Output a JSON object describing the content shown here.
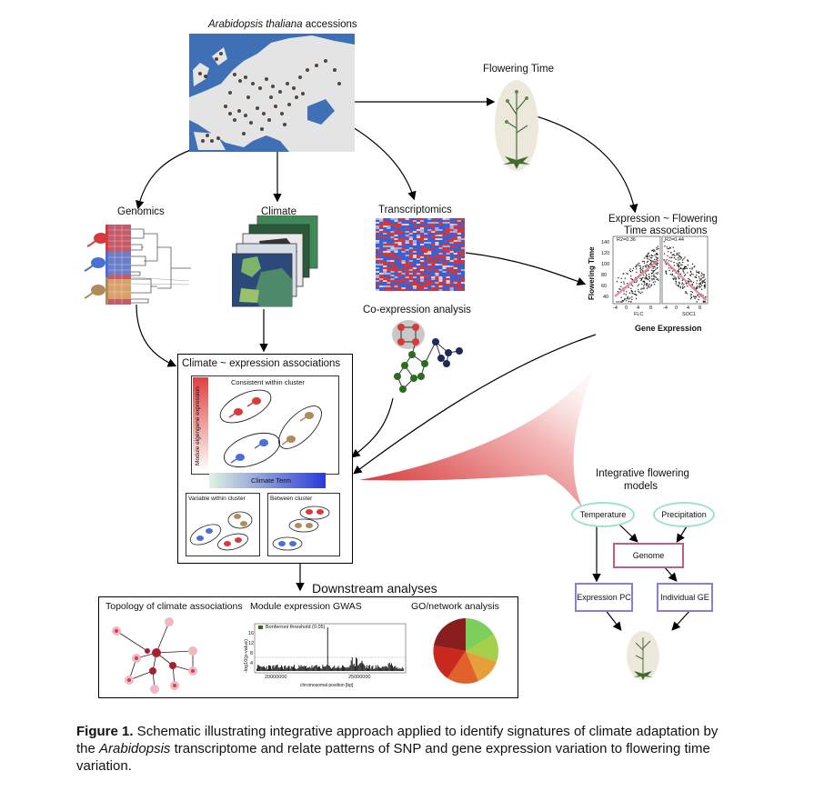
{
  "labels": {
    "map_title_italic": "Arabidopsis thaliana",
    "map_title_rest": " accessions",
    "flowering_time": "Flowering Time",
    "genomics": "Genomics",
    "climate": "Climate",
    "transcriptomics": "Transcriptomics",
    "expr_flowering_line1": "Expression ~ Flowering",
    "expr_flowering_line2": "Time associations",
    "coexpression": "Co-expression analysis",
    "climate_expr": "Climate ~ expression associations",
    "consistent": "Consistent within cluster",
    "module_eigengene": "Module eigengene expression",
    "climate_term": "Climate Term",
    "variable_within": "Variable within cluster",
    "between_cluster": "Between cluster",
    "downstream": "Downstream analyses",
    "topology": "Topology of climate associations",
    "module_gwas": "Module expression GWAS",
    "go_network": "GO/network  analysis",
    "integrative_line1": "Integrative flowering",
    "integrative_line2": "models",
    "temperature": "Temperature",
    "precipitation": "Precipitation",
    "genome": "Genome",
    "expression_pc": "Expression PC",
    "individual_ge": "Individual GE"
  },
  "scatter": {
    "ylabel": "Flowering Time",
    "xlabel": "Gene Expression",
    "left_r2": "R2=0.36",
    "right_r2": "R2=0.44",
    "left_gene": "FLC",
    "right_gene": "SOC1",
    "yticks": [
      "140",
      "120",
      "100",
      "80",
      "60",
      "40"
    ],
    "xticks_left": [
      "-4",
      "0",
      "4",
      "8"
    ],
    "xticks_right": [
      "-4",
      "0",
      "4",
      "8"
    ]
  },
  "gwas": {
    "legend": "Bonferroni threshold (0.05)",
    "ylabel": "-log10(p-value)",
    "yticks": [
      "16",
      "12",
      "8",
      "4"
    ],
    "xticks": [
      "20000000",
      "25000000"
    ],
    "xlabel": "chromosomal position [bp]"
  },
  "caption": {
    "bold": "Figure 1.",
    "part1": " Schematic illustrating integrative approach applied to identify signatures of climate adaptation by the ",
    "italic": "Arabidopsis",
    "part2": " transcriptome and relate patterns of SNP and gene expression variation to flowering time variation."
  },
  "colors": {
    "red": "#d63a3a",
    "blue": "#4a6fd6",
    "brown": "#b08a5a",
    "map_sea": "#3f6fb5",
    "map_land": "#e6e6e6",
    "node_green": "#2e6b1e",
    "node_navy": "#1e2a5a",
    "oval_border": "#9be2c6",
    "genome_border": "#c0607a",
    "expr_border": "#8a7fd8"
  }
}
